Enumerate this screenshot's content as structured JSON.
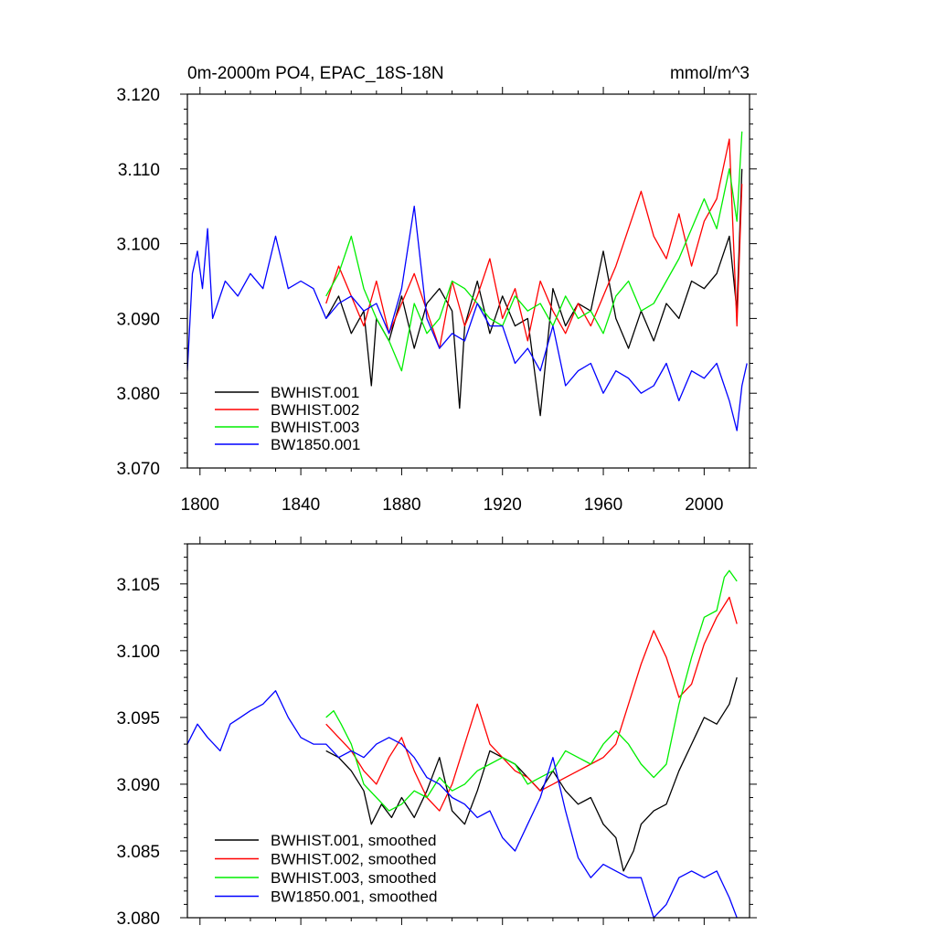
{
  "colors": {
    "BWHIST.001": "#000000",
    "BWHIST.002": "#ff0000",
    "BWHIST.003": "#00ee00",
    "BW1850.001": "#0000ff"
  },
  "chart_data": [
    {
      "type": "line",
      "title": "0m-2000m PO4, EPAC_18S-18N",
      "units": "mmol/m^3",
      "xlim": [
        1795,
        2018
      ],
      "ylim": [
        3.07,
        3.12
      ],
      "xticks": [
        1800,
        1840,
        1880,
        1920,
        1960,
        2000
      ],
      "xtick_labels": [
        "1800",
        "1840",
        "1880",
        "1920",
        "1960",
        "2000"
      ],
      "yticks": [
        3.07,
        3.08,
        3.09,
        3.1,
        3.11,
        3.12
      ],
      "ytick_labels": [
        "3.070",
        "3.080",
        "3.090",
        "3.100",
        "3.110",
        "3.120"
      ],
      "legend_position": "bottom-left",
      "series": [
        {
          "name": "BWHIST.001",
          "color_key": "BWHIST.001",
          "x": [
            1850,
            1855,
            1860,
            1865,
            1868,
            1870,
            1875,
            1880,
            1885,
            1890,
            1895,
            1900,
            1903,
            1905,
            1910,
            1915,
            1920,
            1925,
            1930,
            1935,
            1940,
            1945,
            1950,
            1955,
            1960,
            1965,
            1970,
            1975,
            1980,
            1985,
            1990,
            1995,
            2000,
            2005,
            2010,
            2013,
            2015
          ],
          "y": [
            3.09,
            3.093,
            3.088,
            3.091,
            3.081,
            3.09,
            3.087,
            3.093,
            3.086,
            3.092,
            3.094,
            3.091,
            3.078,
            3.089,
            3.095,
            3.088,
            3.093,
            3.089,
            3.09,
            3.077,
            3.094,
            3.089,
            3.092,
            3.091,
            3.099,
            3.09,
            3.086,
            3.091,
            3.087,
            3.092,
            3.09,
            3.095,
            3.094,
            3.096,
            3.101,
            3.091,
            3.11
          ]
        },
        {
          "name": "BWHIST.002",
          "color_key": "BWHIST.002",
          "x": [
            1850,
            1855,
            1860,
            1865,
            1870,
            1875,
            1880,
            1885,
            1890,
            1895,
            1900,
            1905,
            1910,
            1915,
            1920,
            1925,
            1930,
            1935,
            1940,
            1945,
            1950,
            1955,
            1960,
            1965,
            1970,
            1975,
            1980,
            1985,
            1990,
            1995,
            2000,
            2005,
            2010,
            2013,
            2015
          ],
          "y": [
            3.092,
            3.097,
            3.093,
            3.089,
            3.095,
            3.088,
            3.092,
            3.096,
            3.091,
            3.086,
            3.095,
            3.089,
            3.093,
            3.098,
            3.09,
            3.094,
            3.087,
            3.095,
            3.091,
            3.088,
            3.092,
            3.089,
            3.093,
            3.097,
            3.102,
            3.107,
            3.101,
            3.098,
            3.104,
            3.097,
            3.103,
            3.106,
            3.114,
            3.089,
            3.108
          ]
        },
        {
          "name": "BWHIST.003",
          "color_key": "BWHIST.003",
          "x": [
            1850,
            1855,
            1860,
            1865,
            1870,
            1875,
            1880,
            1885,
            1890,
            1895,
            1900,
            1905,
            1910,
            1915,
            1920,
            1925,
            1930,
            1935,
            1940,
            1945,
            1950,
            1955,
            1960,
            1965,
            1970,
            1975,
            1980,
            1985,
            1990,
            1995,
            2000,
            2005,
            2010,
            2013,
            2015
          ],
          "y": [
            3.093,
            3.096,
            3.101,
            3.094,
            3.09,
            3.087,
            3.083,
            3.092,
            3.088,
            3.09,
            3.095,
            3.094,
            3.092,
            3.09,
            3.089,
            3.093,
            3.091,
            3.092,
            3.089,
            3.093,
            3.09,
            3.091,
            3.088,
            3.093,
            3.095,
            3.091,
            3.092,
            3.095,
            3.098,
            3.102,
            3.106,
            3.102,
            3.11,
            3.103,
            3.115
          ]
        },
        {
          "name": "BW1850.001",
          "color_key": "BW1850.001",
          "x": [
            1795,
            1797,
            1799,
            1801,
            1803,
            1805,
            1810,
            1815,
            1820,
            1825,
            1830,
            1835,
            1840,
            1845,
            1850,
            1855,
            1860,
            1865,
            1870,
            1875,
            1880,
            1885,
            1890,
            1895,
            1900,
            1905,
            1910,
            1915,
            1920,
            1925,
            1930,
            1935,
            1940,
            1945,
            1950,
            1955,
            1960,
            1965,
            1970,
            1975,
            1980,
            1985,
            1990,
            1995,
            2000,
            2005,
            2010,
            2013,
            2015,
            2017
          ],
          "y": [
            3.083,
            3.096,
            3.099,
            3.094,
            3.102,
            3.09,
            3.095,
            3.093,
            3.096,
            3.094,
            3.101,
            3.094,
            3.095,
            3.094,
            3.09,
            3.092,
            3.093,
            3.091,
            3.092,
            3.088,
            3.094,
            3.105,
            3.09,
            3.086,
            3.088,
            3.087,
            3.092,
            3.089,
            3.089,
            3.084,
            3.086,
            3.083,
            3.089,
            3.081,
            3.083,
            3.084,
            3.08,
            3.083,
            3.082,
            3.08,
            3.081,
            3.084,
            3.079,
            3.083,
            3.082,
            3.084,
            3.079,
            3.075,
            3.081,
            3.084
          ]
        }
      ]
    },
    {
      "type": "line",
      "xlim": [
        1795,
        2018
      ],
      "ylim": [
        3.08,
        3.108
      ],
      "xticks": [
        1800,
        1840,
        1880,
        1920,
        1960,
        2000
      ],
      "yticks": [
        3.08,
        3.085,
        3.09,
        3.095,
        3.1,
        3.105
      ],
      "ytick_labels": [
        "3.080",
        "3.085",
        "3.090",
        "3.095",
        "3.100",
        "3.105"
      ],
      "legend_position": "bottom-left",
      "series": [
        {
          "name": "BWHIST.001, smoothed",
          "color_key": "BWHIST.001",
          "x": [
            1850,
            1855,
            1860,
            1865,
            1868,
            1872,
            1876,
            1880,
            1885,
            1890,
            1895,
            1900,
            1905,
            1910,
            1915,
            1920,
            1925,
            1930,
            1935,
            1940,
            1945,
            1950,
            1955,
            1960,
            1965,
            1968,
            1972,
            1975,
            1980,
            1985,
            1990,
            1995,
            2000,
            2005,
            2010,
            2013
          ],
          "y": [
            3.0925,
            3.092,
            3.091,
            3.0895,
            3.087,
            3.0885,
            3.0875,
            3.089,
            3.0875,
            3.0895,
            3.092,
            3.088,
            3.087,
            3.0895,
            3.0925,
            3.092,
            3.0915,
            3.0905,
            3.0895,
            3.091,
            3.0895,
            3.0885,
            3.089,
            3.087,
            3.086,
            3.0835,
            3.085,
            3.087,
            3.088,
            3.0885,
            3.091,
            3.093,
            3.095,
            3.0945,
            3.096,
            3.098
          ]
        },
        {
          "name": "BWHIST.002, smoothed",
          "color_key": "BWHIST.002",
          "x": [
            1850,
            1855,
            1860,
            1865,
            1870,
            1875,
            1880,
            1885,
            1890,
            1895,
            1900,
            1905,
            1910,
            1915,
            1920,
            1925,
            1930,
            1935,
            1940,
            1945,
            1950,
            1955,
            1960,
            1965,
            1970,
            1975,
            1980,
            1985,
            1990,
            1995,
            2000,
            2005,
            2010,
            2013
          ],
          "y": [
            3.0945,
            3.0935,
            3.0925,
            3.091,
            3.09,
            3.092,
            3.0935,
            3.091,
            3.089,
            3.088,
            3.09,
            3.093,
            3.096,
            3.093,
            3.092,
            3.091,
            3.0905,
            3.0895,
            3.09,
            3.0905,
            3.091,
            3.0915,
            3.092,
            3.093,
            3.096,
            3.099,
            3.1015,
            3.0995,
            3.0965,
            3.0975,
            3.1005,
            3.1025,
            3.104,
            3.102
          ]
        },
        {
          "name": "BWHIST.003, smoothed",
          "color_key": "BWHIST.003",
          "x": [
            1850,
            1853,
            1856,
            1860,
            1865,
            1870,
            1875,
            1880,
            1885,
            1890,
            1895,
            1900,
            1905,
            1910,
            1915,
            1920,
            1925,
            1930,
            1935,
            1940,
            1945,
            1950,
            1955,
            1960,
            1965,
            1970,
            1975,
            1980,
            1985,
            1990,
            1995,
            2000,
            2005,
            2008,
            2010,
            2013
          ],
          "y": [
            3.095,
            3.0955,
            3.0945,
            3.093,
            3.09,
            3.089,
            3.088,
            3.0885,
            3.0895,
            3.089,
            3.0905,
            3.0895,
            3.09,
            3.091,
            3.0915,
            3.092,
            3.0915,
            3.09,
            3.0905,
            3.091,
            3.0925,
            3.092,
            3.0915,
            3.093,
            3.094,
            3.093,
            3.0915,
            3.0905,
            3.0915,
            3.096,
            3.0995,
            3.1025,
            3.103,
            3.1055,
            3.106,
            3.1052
          ]
        },
        {
          "name": "BW1850.001, smoothed",
          "color_key": "BW1850.001",
          "x": [
            1795,
            1799,
            1803,
            1808,
            1812,
            1816,
            1820,
            1825,
            1830,
            1835,
            1840,
            1845,
            1850,
            1855,
            1860,
            1865,
            1870,
            1875,
            1880,
            1885,
            1890,
            1895,
            1900,
            1905,
            1910,
            1915,
            1920,
            1925,
            1930,
            1935,
            1940,
            1945,
            1950,
            1955,
            1960,
            1965,
            1970,
            1975,
            1980,
            1985,
            1990,
            1995,
            2000,
            2005,
            2010,
            2013
          ],
          "y": [
            3.093,
            3.0945,
            3.0935,
            3.0925,
            3.0945,
            3.095,
            3.0955,
            3.096,
            3.097,
            3.095,
            3.0935,
            3.093,
            3.093,
            3.092,
            3.0925,
            3.092,
            3.093,
            3.0935,
            3.093,
            3.092,
            3.0905,
            3.09,
            3.089,
            3.0885,
            3.0875,
            3.088,
            3.086,
            3.085,
            3.087,
            3.089,
            3.092,
            3.088,
            3.0845,
            3.083,
            3.084,
            3.0835,
            3.083,
            3.083,
            3.08,
            3.081,
            3.083,
            3.0835,
            3.083,
            3.0835,
            3.0815,
            3.08
          ]
        }
      ]
    }
  ]
}
